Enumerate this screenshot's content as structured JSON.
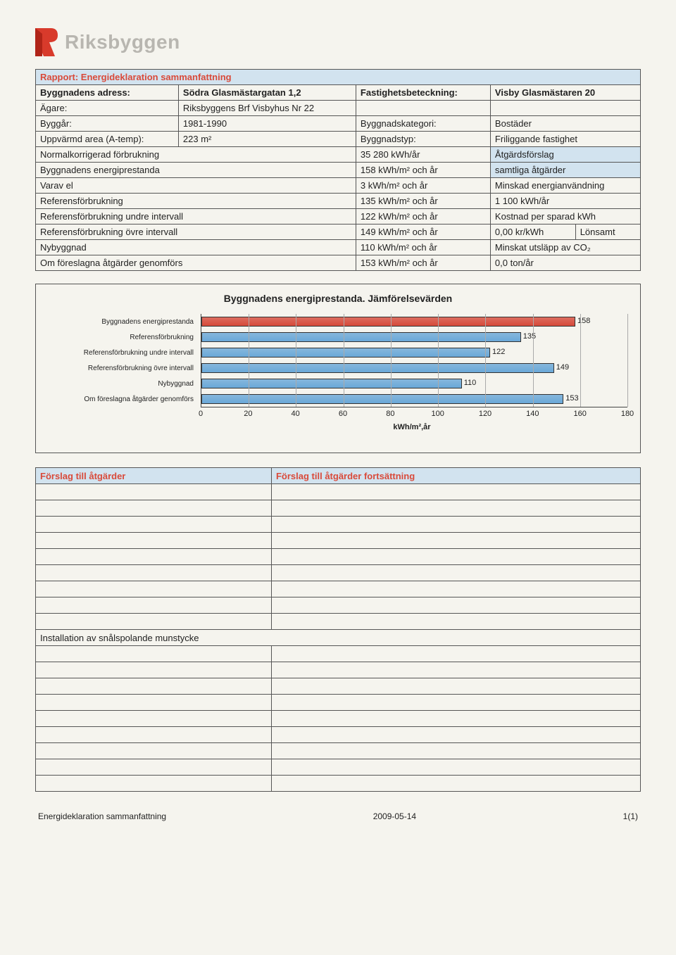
{
  "logo": {
    "text": "Riksbyggen",
    "color1": "#d83a2b",
    "color2": "#b02418"
  },
  "report_title": "Rapport: Energideklaration sammanfattning",
  "t1": {
    "r1": {
      "a_lbl": "Byggnadens adress:",
      "a_val": "Södra Glasmästargatan 1,2",
      "b_lbl": "Fastighetsbeteckning:",
      "b_val": "Visby Glasmästaren 20"
    },
    "r2": {
      "a_lbl": "Ägare:",
      "a_val": "Riksbyggens Brf Visbyhus Nr 22"
    },
    "r3": {
      "a_lbl": "Byggår:",
      "a_val": "1981-1990",
      "b_lbl": "Byggnadskategori:",
      "b_val": "Bostäder"
    },
    "r4": {
      "a_lbl": "Uppvärmd area (A-temp):",
      "a_val": "223 m²",
      "b_lbl": "Byggnadstyp:",
      "b_val": "Friliggande fastighet"
    },
    "r5": {
      "a_lbl": "Normalkorrigerad förbrukning",
      "b_val": "35 280 kWh/år",
      "c_val": "Åtgärdsförslag"
    },
    "r6": {
      "a_lbl": "Byggnadens energiprestanda",
      "b_val": "158 kWh/m² och år",
      "c_val": "samtliga åtgärder"
    },
    "r7": {
      "a_lbl": "Varav el",
      "b_val": "3 kWh/m² och år",
      "c_val": "Minskad energianvändning"
    },
    "r8": {
      "a_lbl": "Referensförbrukning",
      "b_val": "135 kWh/m² och år",
      "c_val": "1 100 kWh/år"
    },
    "r9": {
      "a_lbl": "Referensförbrukning undre intervall",
      "b_val": "122 kWh/m² och år",
      "c_val": "Kostnad per sparad kWh"
    },
    "r10": {
      "a_lbl": "Referensförbrukning övre intervall",
      "b_val": "149 kWh/m² och år",
      "c1": "0,00 kr/kWh",
      "c2": "Lönsamt"
    },
    "r11": {
      "a_lbl": "Nybyggnad",
      "b_val": "110 kWh/m² och år",
      "c_val": "Minskat utsläpp av CO₂"
    },
    "r12": {
      "a_lbl": "Om föreslagna åtgärder genomförs",
      "b_val": "153 kWh/m² och år",
      "c_val": "0,0 ton/år"
    }
  },
  "chart": {
    "title": "Byggnadens energiprestanda. Jämförelsevärden",
    "x_label": "kWh/m²,år",
    "x_max": 180,
    "ticks": [
      0,
      20,
      40,
      60,
      80,
      100,
      120,
      140,
      160,
      180
    ],
    "bars": [
      {
        "label": "Byggnadens energiprestanda",
        "value": 158,
        "color": "#d64a3a"
      },
      {
        "label": "Referensförbrukning",
        "value": 135,
        "color": "#6aa8d8"
      },
      {
        "label": "Referensförbrukning undre intervall",
        "value": 122,
        "color": "#6aa8d8"
      },
      {
        "label": "Referensförbrukning övre intervall",
        "value": 149,
        "color": "#6aa8d8"
      },
      {
        "label": "Nybyggnad",
        "value": 110,
        "color": "#6aa8d8"
      },
      {
        "label": "Om föreslagna åtgärder genomförs",
        "value": 153,
        "color": "#6aa8d8"
      }
    ]
  },
  "measures": {
    "head_left": "Förslag till åtgärder",
    "head_right": "Förslag till åtgärder fortsättning",
    "rows_before": 9,
    "special_row": "Installation av snålspolande munstycke",
    "rows_after": 9
  },
  "footer": {
    "left": "Energideklaration sammanfattning",
    "center": "2009-05-14",
    "right": "1(1)"
  }
}
